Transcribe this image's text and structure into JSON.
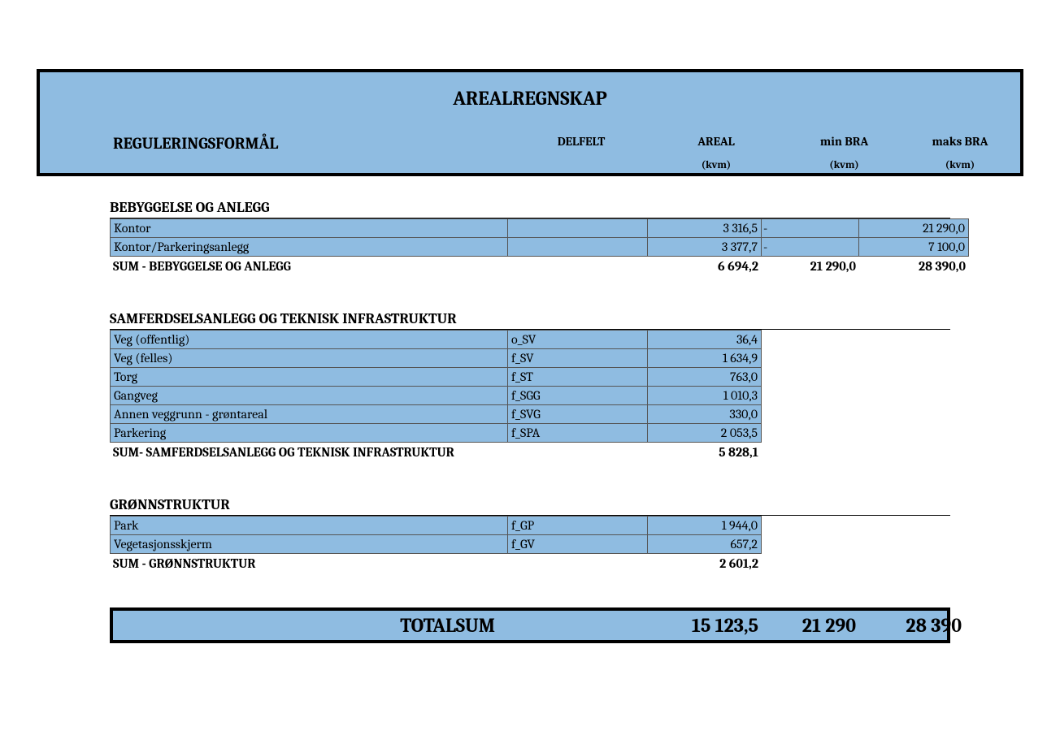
{
  "colors": {
    "header_bg": "#8fbce1",
    "border": "#000000",
    "cell_border": "#555555",
    "page_bg": "#ffffff"
  },
  "fonts": {
    "base_family": "Cambria, Georgia, serif",
    "title_size_pt": 24,
    "header_label_size_pt": 20,
    "col_header_size_pt": 15,
    "unit_size_pt": 13,
    "section_title_size_pt": 18,
    "body_size_pt": 16,
    "total_size_pt": 24
  },
  "header": {
    "title": "AREALREGNSKAP",
    "col_label": "REGULERINGSFORMÅL",
    "col_delfelt": "DELFELT",
    "col_areal": "AREAL",
    "col_min": "min   BRA",
    "col_maks": "maks BRA",
    "unit_areal": "(kvm)",
    "unit_min": "(kvm)",
    "unit_maks": "(kvm)"
  },
  "sections": [
    {
      "title": "BEBYGGELSE OG ANLEGG",
      "rows": [
        {
          "label": "Kontor",
          "delfelt": "",
          "areal": "3 316,5",
          "min": "-",
          "maks": "21 290,0"
        },
        {
          "label": "Kontor/Parkeringsanlegg",
          "delfelt": "",
          "areal": "3 377,7",
          "min": "-",
          "maks": "7 100,0"
        }
      ],
      "sum": {
        "label": "SUM - BEBYGGELSE OG ANLEGG",
        "areal": "6 694,2",
        "min": "21 290,0",
        "maks": "28 390,0"
      },
      "show_min_maks": true
    },
    {
      "title": "SAMFERDSELSANLEGG OG TEKNISK INFRASTRUKTUR",
      "rows": [
        {
          "label": "Veg (offentlig)",
          "delfelt": "o_SV",
          "areal": "36,4"
        },
        {
          "label": "Veg (felles)",
          "delfelt": "f_SV",
          "areal": "1 634,9"
        },
        {
          "label": "Torg",
          "delfelt": "f_ST",
          "areal": "763,0"
        },
        {
          "label": "Gangveg",
          "delfelt": "f_SGG",
          "areal": "1 010,3"
        },
        {
          "label": "Annen veggrunn - grøntareal",
          "delfelt": "f_SVG",
          "areal": "330,0"
        },
        {
          "label": "Parkering",
          "delfelt": "f_SPA",
          "areal": "2 053,5"
        }
      ],
      "sum": {
        "label": "SUM- SAMFERDSELSANLEGG OG TEKNISK INFRASTRUKTUR",
        "areal": "5 828,1"
      },
      "show_min_maks": false
    },
    {
      "title": "GRØNNSTRUKTUR",
      "rows": [
        {
          "label": "Park",
          "delfelt": "f_GP",
          "areal": "1 944,0"
        },
        {
          "label": "Vegetasjonsskjerm",
          "delfelt": "f_GV",
          "areal": "657,2"
        }
      ],
      "sum": {
        "label": "SUM - GRØNNSTRUKTUR",
        "areal": "2 601,2"
      },
      "show_min_maks": false
    }
  ],
  "totalsum": {
    "label": "TOTALSUM",
    "areal": "15 123,5",
    "min": "21 290",
    "maks": "28 390"
  }
}
